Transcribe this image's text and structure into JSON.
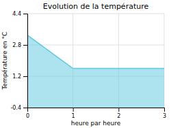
{
  "chart_data": {
    "type": "area",
    "title": "Evolution de la température",
    "x_label": "heure par heure",
    "y_label": "Température en °C",
    "x": [
      0,
      1,
      2,
      3
    ],
    "values": [
      3.3,
      1.6,
      1.6,
      1.6
    ],
    "color": "#5bc8e0",
    "xlim": [
      0,
      3
    ],
    "xticks": [
      0,
      1,
      2,
      3
    ],
    "ylim": [
      -0.4,
      4.4
    ],
    "yticks": [
      -0.4,
      1.2,
      2.8,
      4.4
    ],
    "grid": true
  }
}
